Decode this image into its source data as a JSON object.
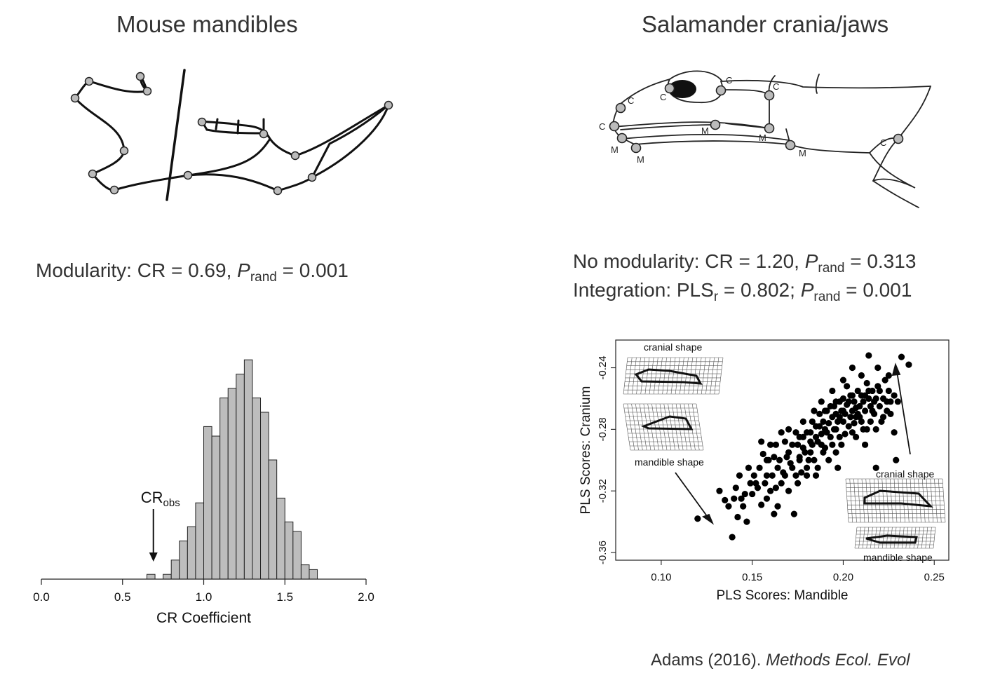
{
  "left": {
    "title": "Mouse mandibles",
    "stat": {
      "prefix": "Modularity: CR = 0.69, ",
      "p_letter": "P",
      "p_sub": "rand",
      "suffix": " = 0.001"
    }
  },
  "right": {
    "title": "Salamander crania/jaws",
    "stat1": {
      "prefix": "No modularity: CR = 1.20, ",
      "p_letter": "P",
      "p_sub": "rand",
      "suffix": " = 0.313"
    },
    "stat2": {
      "prefix": "Integration: PLS",
      "r_sub": "r",
      "mid": " = 0.802; ",
      "p_letter": "P",
      "p_sub": "rand",
      "suffix": " = 0.001"
    }
  },
  "salamander_labels": {
    "c": "C",
    "m": "M"
  },
  "citation": {
    "author": "Adams (2016). ",
    "journal": "Methods Ecol. Evol"
  },
  "chart_data": [
    {
      "type": "bar",
      "xlabel": "CR Coefficient",
      "xticks": [
        0.0,
        0.5,
        1.0,
        1.5,
        2.0
      ],
      "xtick_labels": [
        "0.0",
        "0.5",
        "1.0",
        "1.5",
        "2.0"
      ],
      "xlim": [
        0.0,
        2.0
      ],
      "bin_width": 0.05,
      "bin_starts": [
        0.65,
        0.7,
        0.75,
        0.8,
        0.85,
        0.9,
        0.95,
        1.0,
        1.05,
        1.1,
        1.15,
        1.2,
        1.25,
        1.3,
        1.35,
        1.4,
        1.45,
        1.5,
        1.55,
        1.6,
        1.65
      ],
      "counts": [
        1,
        0,
        1,
        4,
        8,
        11,
        16,
        32,
        30,
        38,
        40,
        43,
        46,
        38,
        35,
        25,
        17,
        12,
        10,
        3,
        2
      ],
      "annotation": {
        "text": "CR",
        "sub": "obs",
        "x": 0.69
      },
      "color": "#bdbdbd"
    },
    {
      "type": "scatter",
      "xlabel": "PLS Scores: Mandible",
      "ylabel": "PLS Scores: Cranium",
      "xticks": [
        0.1,
        0.15,
        0.2,
        0.25
      ],
      "xtick_labels": [
        "0.10",
        "0.15",
        "0.20",
        "0.25"
      ],
      "yticks": [
        -0.24,
        -0.28,
        -0.32,
        -0.36
      ],
      "ytick_labels": [
        "-0.24",
        "-0.28",
        "-0.32",
        "-0.36"
      ],
      "xlim": [
        0.075,
        0.258
      ],
      "ylim": [
        -0.365,
        -0.222
      ],
      "annotations": [
        "cranial shape",
        "mandible shape",
        "cranial shape",
        "mandible shape"
      ],
      "points": [
        [
          0.12,
          -0.338
        ],
        [
          0.139,
          -0.35
        ],
        [
          0.135,
          -0.326
        ],
        [
          0.142,
          -0.337
        ],
        [
          0.14,
          -0.325
        ],
        [
          0.145,
          -0.33
        ],
        [
          0.15,
          -0.322
        ],
        [
          0.152,
          -0.315
        ],
        [
          0.155,
          -0.329
        ],
        [
          0.158,
          -0.31
        ],
        [
          0.16,
          -0.32
        ],
        [
          0.162,
          -0.335
        ],
        [
          0.164,
          -0.305
        ],
        [
          0.158,
          -0.3
        ],
        [
          0.155,
          -0.288
        ],
        [
          0.16,
          -0.29
        ],
        [
          0.165,
          -0.3
        ],
        [
          0.168,
          -0.31
        ],
        [
          0.17,
          -0.295
        ],
        [
          0.172,
          -0.305
        ],
        [
          0.173,
          -0.335
        ],
        [
          0.175,
          -0.29
        ],
        [
          0.176,
          -0.3
        ],
        [
          0.178,
          -0.285
        ],
        [
          0.18,
          -0.282
        ],
        [
          0.182,
          -0.295
        ],
        [
          0.183,
          -0.29
        ],
        [
          0.184,
          -0.3
        ],
        [
          0.185,
          -0.278
        ],
        [
          0.186,
          -0.288
        ],
        [
          0.187,
          -0.27
        ],
        [
          0.188,
          -0.283
        ],
        [
          0.189,
          -0.275
        ],
        [
          0.19,
          -0.28
        ],
        [
          0.19,
          -0.292
        ],
        [
          0.191,
          -0.268
        ],
        [
          0.192,
          -0.276
        ],
        [
          0.193,
          -0.285
        ],
        [
          0.194,
          -0.272
        ],
        [
          0.195,
          -0.265
        ],
        [
          0.195,
          -0.28
        ],
        [
          0.196,
          -0.27
        ],
        [
          0.197,
          -0.275
        ],
        [
          0.198,
          -0.262
        ],
        [
          0.198,
          -0.285
        ],
        [
          0.199,
          -0.268
        ],
        [
          0.2,
          -0.275
        ],
        [
          0.2,
          -0.26
        ],
        [
          0.201,
          -0.27
        ],
        [
          0.202,
          -0.264
        ],
        [
          0.203,
          -0.278
        ],
        [
          0.204,
          -0.258
        ],
        [
          0.205,
          -0.268
        ],
        [
          0.205,
          -0.282
        ],
        [
          0.206,
          -0.262
        ],
        [
          0.207,
          -0.272
        ],
        [
          0.208,
          -0.255
        ],
        [
          0.208,
          -0.27
        ],
        [
          0.209,
          -0.265
        ],
        [
          0.21,
          -0.258
        ],
        [
          0.21,
          -0.275
        ],
        [
          0.211,
          -0.262
        ],
        [
          0.212,
          -0.268
        ],
        [
          0.213,
          -0.25
        ],
        [
          0.213,
          -0.28
        ],
        [
          0.214,
          -0.26
        ],
        [
          0.215,
          -0.265
        ],
        [
          0.215,
          -0.275
        ],
        [
          0.216,
          -0.255
        ],
        [
          0.217,
          -0.27
        ],
        [
          0.218,
          -0.26
        ],
        [
          0.218,
          -0.28
        ],
        [
          0.219,
          -0.252
        ],
        [
          0.22,
          -0.265
        ],
        [
          0.221,
          -0.275
        ],
        [
          0.222,
          -0.26
        ],
        [
          0.223,
          -0.248
        ],
        [
          0.224,
          -0.268
        ],
        [
          0.225,
          -0.255
        ],
        [
          0.226,
          -0.27
        ],
        [
          0.228,
          -0.258
        ],
        [
          0.23,
          -0.262
        ],
        [
          0.232,
          -0.233
        ],
        [
          0.236,
          -0.238
        ],
        [
          0.214,
          -0.232
        ],
        [
          0.205,
          -0.24
        ],
        [
          0.2,
          -0.248
        ],
        [
          0.225,
          -0.245
        ],
        [
          0.228,
          -0.282
        ],
        [
          0.218,
          -0.305
        ],
        [
          0.196,
          -0.295
        ],
        [
          0.166,
          -0.282
        ],
        [
          0.175,
          -0.315
        ],
        [
          0.18,
          -0.31
        ],
        [
          0.163,
          -0.318
        ],
        [
          0.158,
          -0.325
        ],
        [
          0.148,
          -0.305
        ],
        [
          0.143,
          -0.31
        ],
        [
          0.17,
          -0.32
        ],
        [
          0.186,
          -0.305
        ],
        [
          0.192,
          -0.3
        ],
        [
          0.199,
          -0.29
        ],
        [
          0.181,
          -0.3
        ],
        [
          0.174,
          -0.282
        ],
        [
          0.169,
          -0.298
        ],
        [
          0.177,
          -0.308
        ],
        [
          0.153,
          -0.318
        ],
        [
          0.147,
          -0.34
        ],
        [
          0.132,
          -0.32
        ],
        [
          0.164,
          -0.33
        ],
        [
          0.183,
          -0.275
        ],
        [
          0.188,
          -0.262
        ],
        [
          0.194,
          -0.255
        ],
        [
          0.202,
          -0.252
        ],
        [
          0.21,
          -0.245
        ],
        [
          0.219,
          -0.24
        ],
        [
          0.207,
          -0.285
        ],
        [
          0.212,
          -0.29
        ],
        [
          0.197,
          -0.305
        ],
        [
          0.189,
          -0.295
        ],
        [
          0.178,
          -0.292
        ],
        [
          0.171,
          -0.302
        ],
        [
          0.168,
          -0.288
        ],
        [
          0.161,
          -0.31
        ],
        [
          0.156,
          -0.296
        ],
        [
          0.151,
          -0.31
        ],
        [
          0.146,
          -0.322
        ],
        [
          0.141,
          -0.318
        ],
        [
          0.137,
          -0.33
        ],
        [
          0.154,
          -0.305
        ],
        [
          0.162,
          -0.298
        ],
        [
          0.179,
          -0.295
        ],
        [
          0.185,
          -0.285
        ],
        [
          0.191,
          -0.282
        ],
        [
          0.204,
          -0.272
        ],
        [
          0.211,
          -0.28
        ],
        [
          0.216,
          -0.268
        ],
        [
          0.222,
          -0.272
        ],
        [
          0.226,
          -0.262
        ],
        [
          0.203,
          -0.262
        ],
        [
          0.196,
          -0.262
        ],
        [
          0.193,
          -0.265
        ],
        [
          0.201,
          -0.283
        ],
        [
          0.206,
          -0.276
        ],
        [
          0.209,
          -0.272
        ],
        [
          0.214,
          -0.255
        ],
        [
          0.22,
          -0.255
        ],
        [
          0.224,
          -0.262
        ],
        [
          0.217,
          -0.262
        ],
        [
          0.187,
          -0.278
        ],
        [
          0.182,
          -0.288
        ],
        [
          0.176,
          -0.298
        ],
        [
          0.167,
          -0.308
        ],
        [
          0.159,
          -0.3
        ],
        [
          0.157,
          -0.315
        ],
        [
          0.149,
          -0.315
        ],
        [
          0.144,
          -0.325
        ],
        [
          0.172,
          -0.29
        ],
        [
          0.18,
          -0.305
        ],
        [
          0.185,
          -0.31
        ],
        [
          0.174,
          -0.31
        ],
        [
          0.166,
          -0.315
        ],
        [
          0.163,
          -0.29
        ],
        [
          0.17,
          -0.28
        ],
        [
          0.178,
          -0.275
        ],
        [
          0.184,
          -0.268
        ],
        [
          0.19,
          -0.268
        ],
        [
          0.196,
          -0.28
        ],
        [
          0.2,
          -0.268
        ],
        [
          0.207,
          -0.266
        ],
        [
          0.212,
          -0.258
        ],
        [
          0.205,
          -0.258
        ],
        [
          0.198,
          -0.272
        ],
        [
          0.194,
          -0.29
        ],
        [
          0.188,
          -0.29
        ],
        [
          0.182,
          -0.282
        ],
        [
          0.176,
          -0.285
        ],
        [
          0.229,
          -0.3
        ]
      ],
      "point_color": "#000000"
    }
  ]
}
